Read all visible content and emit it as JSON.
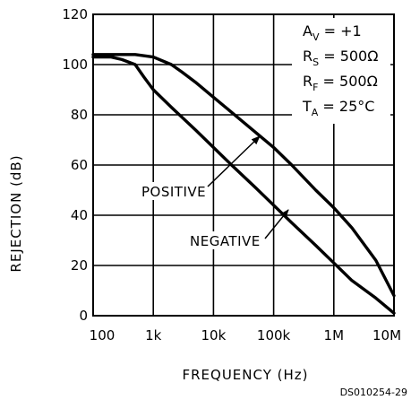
{
  "chart_data": {
    "type": "line",
    "xscale": "log",
    "xlabel": "FREQUENCY (Hz)",
    "ylabel": "REJECTION (dB)",
    "xlim": [
      100,
      10000000
    ],
    "ylim": [
      0,
      120
    ],
    "x_ticks": [
      100,
      1000,
      10000,
      100000,
      1000000,
      10000000
    ],
    "x_tick_labels": [
      "100",
      "1k",
      "10k",
      "100k",
      "1M",
      "10M"
    ],
    "y_ticks": [
      0,
      20,
      40,
      60,
      80,
      100,
      120
    ],
    "y_tick_labels": [
      "0",
      "20",
      "40",
      "60",
      "80",
      "100",
      "120"
    ],
    "grid": true,
    "conditions": [
      {
        "main": "A",
        "sub": "V",
        "rest": " = +1"
      },
      {
        "main": "R",
        "sub": "S",
        "rest": " = 500Ω"
      },
      {
        "main": "R",
        "sub": "F",
        "rest": " = 500Ω"
      },
      {
        "main": "T",
        "sub": "A",
        "rest": " = 25°C"
      }
    ],
    "series": [
      {
        "name": "POSITIVE",
        "x": [
          100,
          200,
          500,
          1000,
          2000,
          3000,
          5000,
          10000,
          20000,
          50000,
          100000,
          200000,
          500000,
          1000000,
          2000000,
          5000000,
          10000000
        ],
        "y": [
          104,
          104,
          104,
          103,
          100,
          97,
          93,
          87,
          81,
          73,
          67,
          60,
          50,
          43,
          35,
          22,
          8
        ]
      },
      {
        "name": "NEGATIVE",
        "x": [
          100,
          200,
          300,
          500,
          700,
          1000,
          2000,
          5000,
          10000,
          20000,
          50000,
          100000,
          200000,
          500000,
          1000000,
          2000000,
          5000000,
          10000000
        ],
        "y": [
          103,
          103,
          102,
          100,
          95,
          90,
          83,
          74,
          67,
          60,
          51,
          44,
          37,
          28,
          21,
          14,
          7,
          1
        ]
      }
    ],
    "annotations": [
      {
        "text": "POSITIVE",
        "points_to": "POSITIVE"
      },
      {
        "text": "NEGATIVE",
        "points_to": "NEGATIVE"
      }
    ],
    "figure_code": "DS010254-29"
  }
}
